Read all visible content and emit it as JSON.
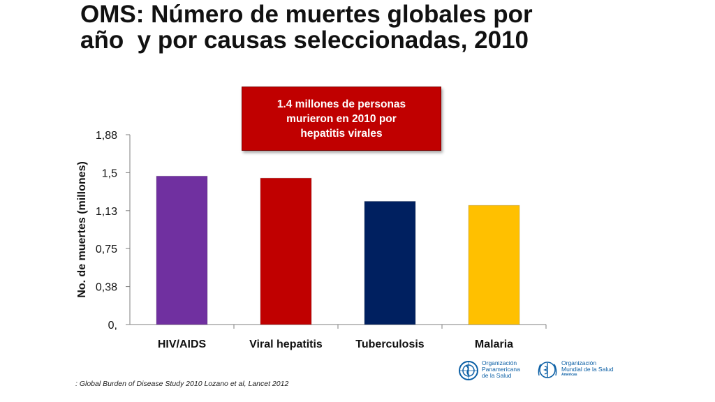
{
  "slide": {
    "title_line1": "OMS: Número de muertes globales por",
    "title_line2": "año  y por causas seleccionadas, 2010",
    "callout_line1": "1.4 millones de personas",
    "callout_line2": "murieron en 2010 por",
    "callout_line3": "hepatitis virales",
    "callout_color": "#c00000",
    "source": ": Global Burden of Disease Study 2010 Lozano et al, Lancet 2012"
  },
  "logos": {
    "paho_line1": "Organización",
    "paho_line2": "Panamericana",
    "paho_line3": "de la Salud",
    "who_line1": "Organización",
    "who_line2": "Mundial de la Salud",
    "who_line3": "Américas",
    "paho_icon": "globe-icon",
    "who_icon": "who-emblem-icon"
  },
  "chart_data": {
    "type": "bar",
    "title": "OMS: Número de muertes globales por año  y por causas seleccionadas, 2010",
    "ylabel": "No. de muertes (millones)",
    "xlabel": "",
    "categories": [
      "HIV/AIDS",
      "Viral hepatitis",
      "Tuberculosis",
      "Malaria"
    ],
    "values": [
      1.47,
      1.45,
      1.22,
      1.18
    ],
    "colors": [
      "#7030a0",
      "#c00000",
      "#002060",
      "#ffc000"
    ],
    "ylim": [
      0,
      1.88
    ],
    "yticks": [
      0,
      0.376,
      0.752,
      1.128,
      1.504,
      1.88
    ],
    "ytick_labels": [
      "0,",
      "0,38",
      "0,75",
      "1,13",
      "1,5",
      "1,88"
    ],
    "grid": false,
    "legend": "none"
  }
}
